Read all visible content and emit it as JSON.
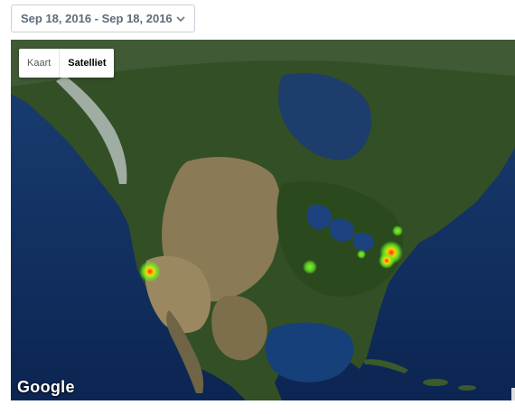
{
  "date_range": {
    "label": "Sep 18, 2016 - Sep 18, 2016"
  },
  "map": {
    "type_controls": {
      "map_label": "Kaart",
      "satellite_label": "Satelliet",
      "active": "satellite"
    },
    "attribution_logo": "Google",
    "heatmap_hotspots": [
      {
        "region": "California coast",
        "intensity": "high"
      },
      {
        "region": "Midwest",
        "intensity": "low"
      },
      {
        "region": "Ohio Valley",
        "intensity": "low"
      },
      {
        "region": "US East Coast",
        "intensity": "high"
      }
    ]
  },
  "colors": {
    "heat_low": "#66ee22",
    "heat_mid": "#ffee00",
    "heat_high": "#ff2200",
    "ocean": "#0e2a5c",
    "land": "#2f4d22"
  }
}
